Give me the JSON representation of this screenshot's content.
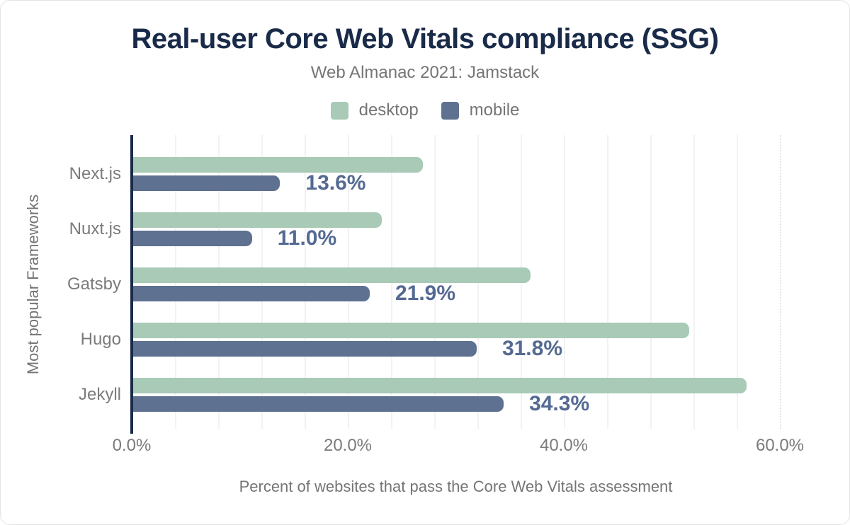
{
  "title": "Real-user Core Web Vitals compliance (SSG)",
  "subtitle": "Web Almanac 2021: Jamstack",
  "legend": [
    {
      "label": "desktop",
      "color": "#a8cab7"
    },
    {
      "label": "mobile",
      "color": "#5f7190"
    }
  ],
  "chart_data": {
    "type": "bar",
    "orientation": "horizontal",
    "title": "Real-user Core Web Vitals compliance (SSG)",
    "subtitle": "Web Almanac 2021: Jamstack",
    "categories": [
      "Next.js",
      "Nuxt.js",
      "Gatsby",
      "Hugo",
      "Jekyll"
    ],
    "series": [
      {
        "name": "desktop",
        "color": "#a8cab7",
        "values": [
          26.8,
          23.0,
          36.8,
          51.5,
          56.8
        ]
      },
      {
        "name": "mobile",
        "color": "#5f7190",
        "values": [
          13.6,
          11.0,
          21.9,
          31.8,
          34.3
        ],
        "labels": [
          "13.6%",
          "11.0%",
          "21.9%",
          "31.8%",
          "34.3%"
        ]
      }
    ],
    "xlabel": "Percent of websites that pass the Core Web Vitals assessment",
    "ylabel": "Most popular Frameworks",
    "x_ticks": [
      "0.0%",
      "20.0%",
      "40.0%",
      "60.0%"
    ],
    "x_tick_values": [
      0,
      20,
      40,
      60
    ],
    "xlim": [
      0,
      62.6
    ],
    "grid": "vertical, minor every 4%, 60% line dotted",
    "legend_position": "top-center",
    "value_labels_on": "mobile"
  },
  "colors": {
    "title_text": "#1a2b49",
    "axis_line": "#1a2b49",
    "muted_text": "#757575",
    "tick_text": "#7b7b7b",
    "value_label_text": "#546a93",
    "gridline": "#f2f2f2",
    "gridline_dotted": "#e4e4e4",
    "desktop_bar": "#a8cab7",
    "mobile_bar": "#5f7190",
    "background": "#ffffff",
    "card_border": "#e4e4e4"
  }
}
